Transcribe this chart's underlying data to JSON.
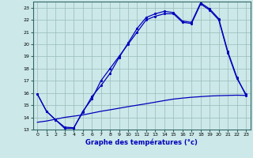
{
  "xlabel": "Graphe des températures (°c)",
  "xlim": [
    -0.5,
    23.5
  ],
  "ylim": [
    13,
    23.5
  ],
  "yticks": [
    13,
    14,
    15,
    16,
    17,
    18,
    19,
    20,
    21,
    22,
    23
  ],
  "xticks": [
    0,
    1,
    2,
    3,
    4,
    5,
    6,
    7,
    8,
    9,
    10,
    11,
    12,
    13,
    14,
    15,
    16,
    17,
    18,
    19,
    20,
    21,
    22,
    23
  ],
  "bg_color": "#cce8e8",
  "line_color": "#0000bb",
  "grid_color": "#99bbbb",
  "line1": {
    "x": [
      0,
      1,
      2,
      3,
      4,
      5,
      6,
      7,
      8,
      9,
      10,
      11,
      12,
      13,
      14,
      15,
      16,
      17,
      18,
      19,
      20,
      21,
      22,
      23
    ],
    "y": [
      13.6,
      13.7,
      13.85,
      14.0,
      14.1,
      14.2,
      14.35,
      14.5,
      14.62,
      14.75,
      14.88,
      15.0,
      15.12,
      15.25,
      15.38,
      15.5,
      15.58,
      15.65,
      15.7,
      15.75,
      15.78,
      15.8,
      15.82,
      15.8
    ]
  },
  "line2": {
    "x": [
      0,
      1,
      2,
      3,
      4,
      5,
      6,
      7,
      8,
      9,
      10,
      11,
      12,
      13,
      14,
      15,
      16,
      17,
      18,
      19,
      20,
      21,
      22,
      23
    ],
    "y": [
      15.9,
      14.5,
      13.8,
      13.1,
      13.1,
      14.5,
      15.5,
      17.0,
      18.0,
      19.0,
      20.0,
      21.0,
      22.0,
      22.3,
      22.5,
      22.5,
      21.8,
      21.7,
      23.3,
      22.8,
      22.0,
      19.3,
      17.2,
      15.9
    ]
  },
  "line3": {
    "x": [
      0,
      1,
      2,
      3,
      4,
      5,
      6,
      7,
      8,
      9,
      10,
      11,
      12,
      13,
      14,
      15,
      16,
      17,
      18,
      19,
      20,
      21,
      22,
      23
    ],
    "y": [
      15.9,
      14.5,
      13.8,
      13.2,
      13.15,
      14.4,
      15.7,
      16.6,
      17.6,
      18.9,
      20.1,
      21.3,
      22.2,
      22.5,
      22.7,
      22.6,
      21.9,
      21.8,
      23.4,
      22.9,
      22.1,
      19.4,
      17.3,
      15.8
    ]
  }
}
